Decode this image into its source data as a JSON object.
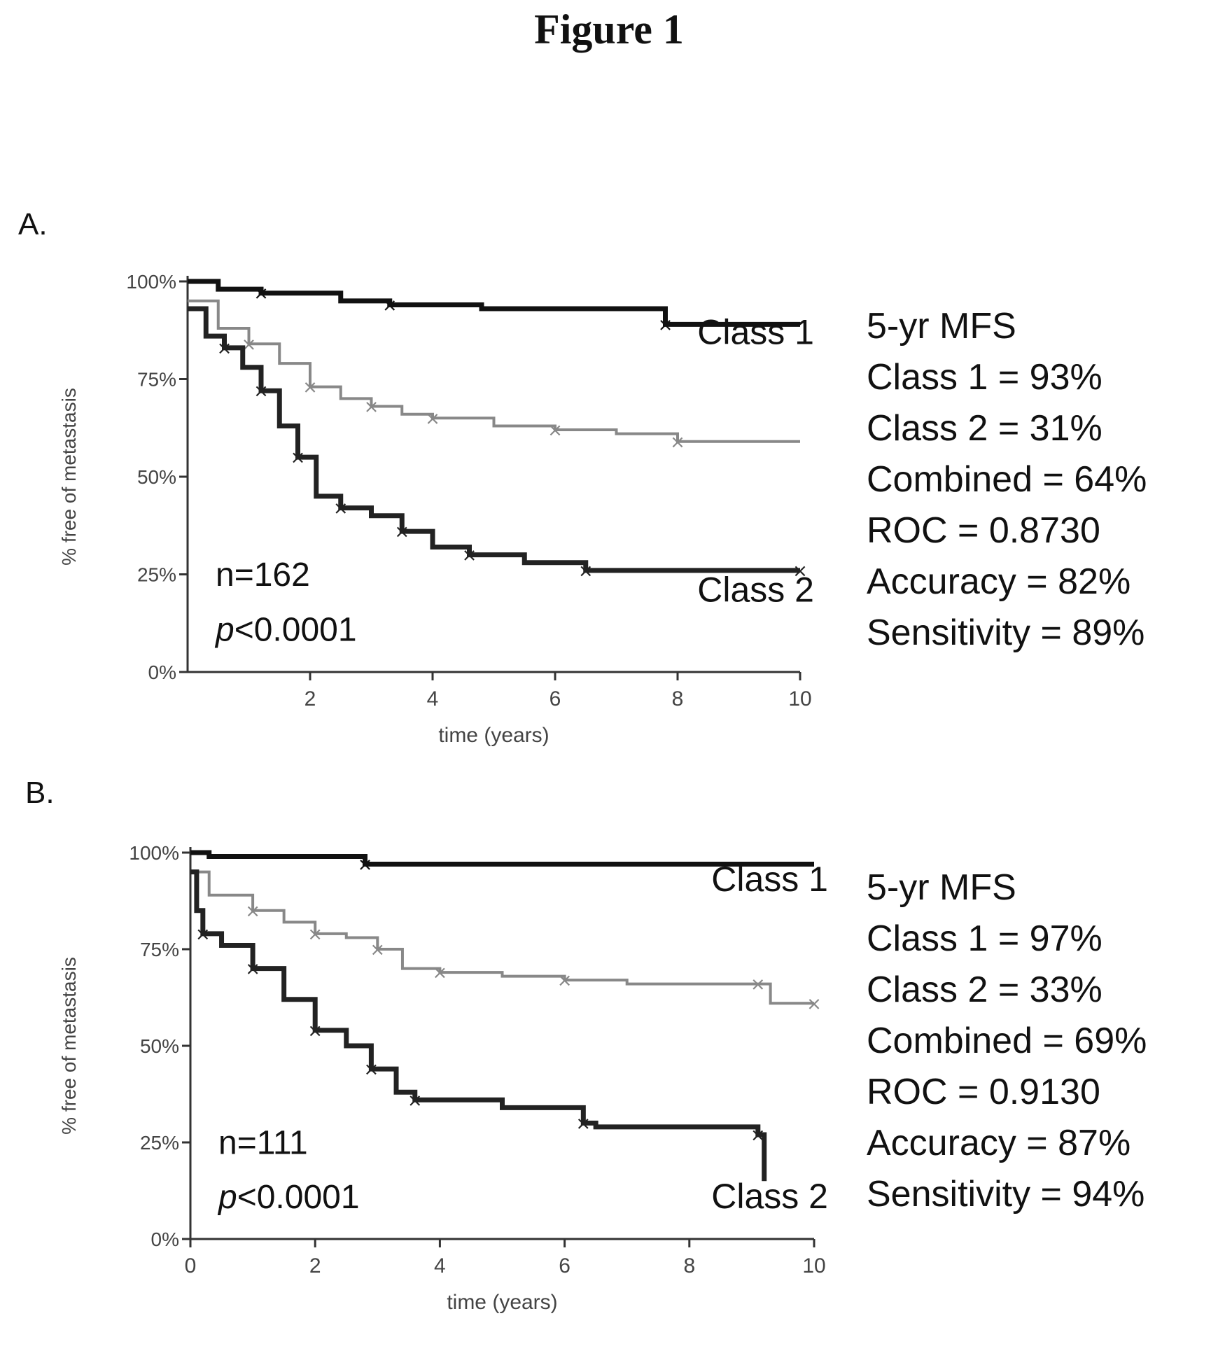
{
  "figure_title": "Figure 1",
  "chart_data": [
    {
      "type": "line",
      "panel": "A.",
      "xlabel": "time (years)",
      "ylabel": "% free of metastasis",
      "xlim": [
        0,
        10
      ],
      "ylim": [
        0,
        100
      ],
      "x_ticks": [
        "2",
        "4",
        "6",
        "8",
        "10"
      ],
      "y_ticks": [
        "100%",
        "75%",
        "50%",
        "25%",
        "0%"
      ],
      "n_label": "n=162",
      "p_label": "p<0.0001",
      "stats_lines": [
        "5-yr MFS",
        "Class 1 = 93%",
        "Class 2 = 31%",
        "Combined = 64%",
        "ROC = 0.8730",
        "Accuracy = 82%",
        "Sensitivity = 89%"
      ],
      "series": [
        {
          "name": "Class 1",
          "color": "#111111",
          "x": [
            0,
            0.5,
            1.2,
            2.5,
            3.3,
            4.8,
            7.8,
            10
          ],
          "y": [
            100,
            98,
            97,
            95,
            94,
            93,
            89,
            89
          ]
        },
        {
          "name": "Combined",
          "color": "#888888",
          "x": [
            0,
            0.5,
            1,
            1.5,
            2,
            2.5,
            3,
            3.5,
            4,
            5,
            6,
            7,
            8,
            10
          ],
          "y": [
            95,
            88,
            84,
            79,
            73,
            70,
            68,
            66,
            65,
            63,
            62,
            61,
            59,
            59
          ]
        },
        {
          "name": "Class 2",
          "color": "#222222",
          "x": [
            0,
            0.3,
            0.6,
            0.9,
            1.2,
            1.5,
            1.8,
            2.1,
            2.5,
            3.0,
            3.5,
            4.0,
            4.6,
            5.5,
            6.5,
            8.0,
            10
          ],
          "y": [
            93,
            86,
            83,
            78,
            72,
            63,
            55,
            45,
            42,
            40,
            36,
            32,
            30,
            28,
            26,
            26,
            26
          ]
        }
      ],
      "class_labels": [
        {
          "text": "Class 1",
          "x": 10,
          "y": 84
        },
        {
          "text": "Class 2",
          "x": 10,
          "y": 18
        }
      ]
    },
    {
      "type": "line",
      "panel": "B.",
      "xlabel": "time (years)",
      "ylabel": "% free of metastasis",
      "xlim": [
        0,
        10
      ],
      "ylim": [
        0,
        100
      ],
      "x_ticks": [
        "0",
        "2",
        "4",
        "6",
        "8",
        "10"
      ],
      "y_ticks": [
        "100%",
        "75%",
        "50%",
        "25%",
        "0%"
      ],
      "n_label": "n=111",
      "p_label": "p<0.0001",
      "stats_lines": [
        "5-yr MFS",
        "Class 1 = 97%",
        "Class 2 = 33%",
        "Combined = 69%",
        "ROC = 0.9130",
        "Accuracy = 87%",
        "Sensitivity = 94%"
      ],
      "series": [
        {
          "name": "Class 1",
          "color": "#111111",
          "x": [
            0,
            0.3,
            2.8,
            10
          ],
          "y": [
            100,
            99,
            97,
            97
          ]
        },
        {
          "name": "Combined",
          "color": "#888888",
          "x": [
            0,
            0.3,
            1,
            1.5,
            2,
            2.5,
            3,
            3.4,
            4,
            5,
            6,
            7,
            9.1,
            9.3,
            10
          ],
          "y": [
            95,
            89,
            85,
            82,
            79,
            78,
            75,
            70,
            69,
            68,
            67,
            66,
            66,
            61,
            61
          ]
        },
        {
          "name": "Class 2",
          "color": "#222222",
          "x": [
            0,
            0.1,
            0.2,
            0.5,
            1,
            1.5,
            2,
            2.5,
            2.9,
            3.3,
            3.6,
            5,
            6.3,
            6.5,
            9.1,
            9.2
          ],
          "y": [
            95,
            85,
            79,
            76,
            70,
            62,
            54,
            50,
            44,
            38,
            36,
            34,
            30,
            29,
            27,
            15
          ]
        }
      ],
      "class_labels": [
        {
          "text": "Class 1",
          "x": 10,
          "y": 90
        },
        {
          "text": "Class 2",
          "x": 10,
          "y": 8
        }
      ]
    }
  ]
}
